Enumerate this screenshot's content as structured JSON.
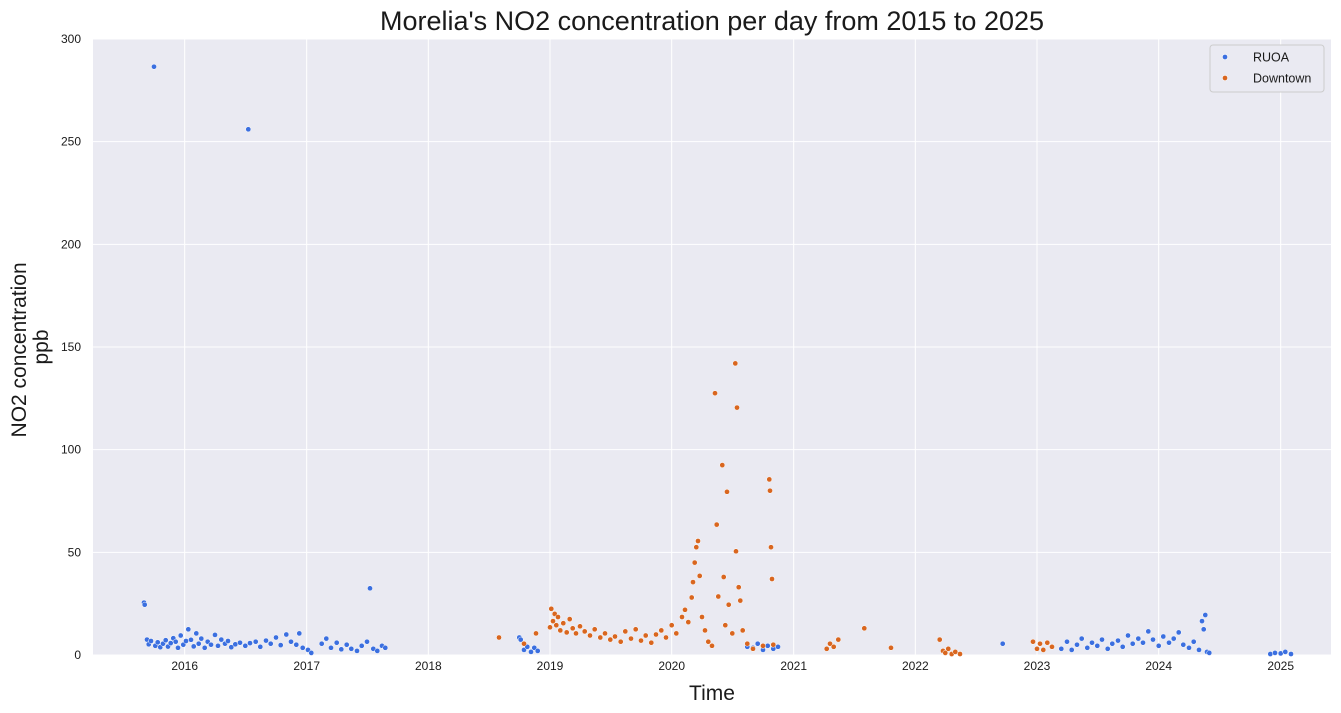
{
  "chart_data": {
    "type": "scatter",
    "title": "Morelia's NO2 concentration per day from 2015 to 2025",
    "xlabel": "Time",
    "ylabel_lines": [
      "NO2 concentration",
      "ppb"
    ],
    "xlim": [
      "2015-04-01",
      "2025-06-01"
    ],
    "ylim": [
      0,
      300
    ],
    "x_ticks": [
      {
        "date": "2016-01-01",
        "label": "2016"
      },
      {
        "date": "2017-01-01",
        "label": "2017"
      },
      {
        "date": "2018-01-01",
        "label": "2018"
      },
      {
        "date": "2019-01-01",
        "label": "2019"
      },
      {
        "date": "2020-01-01",
        "label": "2020"
      },
      {
        "date": "2021-01-01",
        "label": "2021"
      },
      {
        "date": "2022-01-01",
        "label": "2022"
      },
      {
        "date": "2023-01-01",
        "label": "2023"
      },
      {
        "date": "2024-01-01",
        "label": "2024"
      },
      {
        "date": "2025-01-01",
        "label": "2025"
      }
    ],
    "y_ticks": [
      0,
      50,
      100,
      150,
      200,
      250,
      300
    ],
    "grid": true,
    "background": "#EAEAF2",
    "legend_position": "top-right",
    "series": [
      {
        "name": "RUOA",
        "color": "#3B6FE0",
        "points": [
          [
            "2015-09-01",
            25.5
          ],
          [
            "2015-09-03",
            24.5
          ],
          [
            "2015-09-10",
            7.5
          ],
          [
            "2015-09-15",
            5.2
          ],
          [
            "2015-09-22",
            6.8
          ],
          [
            "2015-10-01",
            286.5
          ],
          [
            "2015-10-05",
            4.5
          ],
          [
            "2015-10-12",
            6.2
          ],
          [
            "2015-10-20",
            3.8
          ],
          [
            "2015-10-28",
            5.5
          ],
          [
            "2015-11-05",
            7.2
          ],
          [
            "2015-11-12",
            4.1
          ],
          [
            "2015-11-20",
            5.8
          ],
          [
            "2015-11-28",
            8.2
          ],
          [
            "2015-12-05",
            6.5
          ],
          [
            "2015-12-12",
            3.5
          ],
          [
            "2015-12-20",
            9.5
          ],
          [
            "2015-12-28",
            5.0
          ],
          [
            "2016-01-05",
            6.8
          ],
          [
            "2016-01-12",
            12.5
          ],
          [
            "2016-01-20",
            7.4
          ],
          [
            "2016-01-28",
            4.2
          ],
          [
            "2016-02-05",
            10.5
          ],
          [
            "2016-02-12",
            5.5
          ],
          [
            "2016-02-20",
            8.0
          ],
          [
            "2016-03-01",
            3.5
          ],
          [
            "2016-03-10",
            6.5
          ],
          [
            "2016-03-20",
            5.0
          ],
          [
            "2016-04-01",
            9.8
          ],
          [
            "2016-04-10",
            4.5
          ],
          [
            "2016-04-20",
            7.5
          ],
          [
            "2016-05-01",
            5.5
          ],
          [
            "2016-05-10",
            6.8
          ],
          [
            "2016-05-20",
            3.8
          ],
          [
            "2016-06-01",
            5.2
          ],
          [
            "2016-06-15",
            6.0
          ],
          [
            "2016-07-01",
            4.5
          ],
          [
            "2016-07-10",
            256.0
          ],
          [
            "2016-07-15",
            5.8
          ],
          [
            "2016-08-01",
            6.5
          ],
          [
            "2016-08-15",
            4.0
          ],
          [
            "2016-09-01",
            7.0
          ],
          [
            "2016-09-15",
            5.5
          ],
          [
            "2016-10-01",
            8.5
          ],
          [
            "2016-10-15",
            4.8
          ],
          [
            "2016-11-01",
            10.0
          ],
          [
            "2016-11-15",
            6.5
          ],
          [
            "2016-12-01",
            5.0
          ],
          [
            "2016-12-10",
            10.5
          ],
          [
            "2016-12-20",
            3.5
          ],
          [
            "2017-01-05",
            2.5
          ],
          [
            "2017-01-15",
            1.0
          ],
          [
            "2017-02-15",
            5.5
          ],
          [
            "2017-03-01",
            8.0
          ],
          [
            "2017-03-15",
            3.5
          ],
          [
            "2017-04-01",
            6.0
          ],
          [
            "2017-04-15",
            2.8
          ],
          [
            "2017-05-01",
            5.0
          ],
          [
            "2017-05-15",
            3.0
          ],
          [
            "2017-06-01",
            2.0
          ],
          [
            "2017-06-15",
            4.5
          ],
          [
            "2017-07-01",
            6.5
          ],
          [
            "2017-07-10",
            32.5
          ],
          [
            "2017-07-20",
            3.0
          ],
          [
            "2017-08-01",
            2.0
          ],
          [
            "2017-08-15",
            4.5
          ],
          [
            "2017-08-25",
            3.5
          ],
          [
            "2018-10-01",
            8.5
          ],
          [
            "2018-10-05",
            7.5
          ],
          [
            "2018-10-15",
            2.5
          ],
          [
            "2018-10-25",
            4.0
          ],
          [
            "2018-11-05",
            1.5
          ],
          [
            "2018-11-15",
            3.5
          ],
          [
            "2018-11-25",
            2.0
          ],
          [
            "2020-08-15",
            4.0
          ],
          [
            "2020-09-01",
            3.5
          ],
          [
            "2020-09-15",
            5.5
          ],
          [
            "2020-10-01",
            2.5
          ],
          [
            "2020-10-15",
            4.5
          ],
          [
            "2020-11-01",
            3.0
          ],
          [
            "2020-11-15",
            4.0
          ],
          [
            "2022-09-20",
            5.5
          ],
          [
            "2023-03-15",
            3.0
          ],
          [
            "2023-04-01",
            6.5
          ],
          [
            "2023-04-15",
            2.5
          ],
          [
            "2023-05-01",
            5.0
          ],
          [
            "2023-05-15",
            8.0
          ],
          [
            "2023-06-01",
            3.5
          ],
          [
            "2023-06-15",
            6.0
          ],
          [
            "2023-07-01",
            4.5
          ],
          [
            "2023-07-15",
            7.5
          ],
          [
            "2023-08-01",
            3.0
          ],
          [
            "2023-08-15",
            5.5
          ],
          [
            "2023-09-01",
            7.0
          ],
          [
            "2023-09-15",
            4.0
          ],
          [
            "2023-10-01",
            9.5
          ],
          [
            "2023-10-15",
            5.5
          ],
          [
            "2023-11-01",
            8.0
          ],
          [
            "2023-11-15",
            6.0
          ],
          [
            "2023-12-01",
            11.5
          ],
          [
            "2023-12-15",
            7.5
          ],
          [
            "2024-01-01",
            4.5
          ],
          [
            "2024-01-15",
            9.0
          ],
          [
            "2024-02-01",
            6.0
          ],
          [
            "2024-02-15",
            8.0
          ],
          [
            "2024-03-01",
            11.0
          ],
          [
            "2024-03-15",
            5.0
          ],
          [
            "2024-04-01",
            3.5
          ],
          [
            "2024-04-15",
            6.5
          ],
          [
            "2024-05-01",
            2.5
          ],
          [
            "2024-05-10",
            16.5
          ],
          [
            "2024-05-15",
            12.5
          ],
          [
            "2024-05-20",
            19.5
          ],
          [
            "2024-05-25",
            1.5
          ],
          [
            "2024-06-01",
            1.0
          ],
          [
            "2024-12-01",
            0.5
          ],
          [
            "2024-12-15",
            1.0
          ],
          [
            "2025-01-01",
            0.8
          ],
          [
            "2025-01-15",
            1.5
          ],
          [
            "2025-02-01",
            0.5
          ]
        ]
      },
      {
        "name": "Downtown",
        "color": "#D9661F",
        "points": [
          [
            "2018-08-01",
            8.5
          ],
          [
            "2018-10-15",
            5.5
          ],
          [
            "2018-11-20",
            10.5
          ],
          [
            "2019-01-01",
            13.5
          ],
          [
            "2019-01-05",
            22.5
          ],
          [
            "2019-01-10",
            16.5
          ],
          [
            "2019-01-15",
            20.0
          ],
          [
            "2019-01-20",
            14.5
          ],
          [
            "2019-01-25",
            18.5
          ],
          [
            "2019-02-01",
            12.0
          ],
          [
            "2019-02-10",
            15.5
          ],
          [
            "2019-02-20",
            11.0
          ],
          [
            "2019-03-01",
            17.5
          ],
          [
            "2019-03-10",
            13.0
          ],
          [
            "2019-03-20",
            10.5
          ],
          [
            "2019-04-01",
            14.0
          ],
          [
            "2019-04-15",
            11.5
          ],
          [
            "2019-05-01",
            9.5
          ],
          [
            "2019-05-15",
            12.5
          ],
          [
            "2019-06-01",
            8.5
          ],
          [
            "2019-06-15",
            10.5
          ],
          [
            "2019-07-01",
            7.5
          ],
          [
            "2019-07-15",
            9.0
          ],
          [
            "2019-08-01",
            6.5
          ],
          [
            "2019-08-15",
            11.5
          ],
          [
            "2019-09-01",
            8.0
          ],
          [
            "2019-09-15",
            12.5
          ],
          [
            "2019-10-01",
            7.0
          ],
          [
            "2019-10-15",
            9.5
          ],
          [
            "2019-11-01",
            6.0
          ],
          [
            "2019-11-15",
            10.0
          ],
          [
            "2019-12-01",
            12.0
          ],
          [
            "2019-12-15",
            8.5
          ],
          [
            "2020-01-01",
            14.5
          ],
          [
            "2020-01-15",
            10.5
          ],
          [
            "2020-02-01",
            18.5
          ],
          [
            "2020-02-10",
            22.0
          ],
          [
            "2020-02-20",
            16.0
          ],
          [
            "2020-03-01",
            28.0
          ],
          [
            "2020-03-05",
            35.5
          ],
          [
            "2020-03-10",
            45.0
          ],
          [
            "2020-03-15",
            52.5
          ],
          [
            "2020-03-20",
            55.5
          ],
          [
            "2020-03-25",
            38.5
          ],
          [
            "2020-04-01",
            18.5
          ],
          [
            "2020-04-10",
            12.0
          ],
          [
            "2020-04-20",
            6.5
          ],
          [
            "2020-05-01",
            4.5
          ],
          [
            "2020-05-10",
            127.5
          ],
          [
            "2020-05-15",
            63.5
          ],
          [
            "2020-05-20",
            28.5
          ],
          [
            "2020-06-01",
            92.5
          ],
          [
            "2020-06-05",
            38.0
          ],
          [
            "2020-06-10",
            14.5
          ],
          [
            "2020-06-15",
            79.5
          ],
          [
            "2020-06-20",
            24.5
          ],
          [
            "2020-07-01",
            10.5
          ],
          [
            "2020-07-10",
            142.0
          ],
          [
            "2020-07-12",
            50.5
          ],
          [
            "2020-07-15",
            120.5
          ],
          [
            "2020-07-20",
            33.0
          ],
          [
            "2020-07-25",
            26.5
          ],
          [
            "2020-08-01",
            12.0
          ],
          [
            "2020-08-15",
            5.5
          ],
          [
            "2020-09-01",
            3.0
          ],
          [
            "2020-10-01",
            4.5
          ],
          [
            "2020-10-20",
            85.5
          ],
          [
            "2020-10-22",
            80.0
          ],
          [
            "2020-10-25",
            52.5
          ],
          [
            "2020-10-28",
            37.0
          ],
          [
            "2020-11-01",
            5.0
          ],
          [
            "2021-04-10",
            3.0
          ],
          [
            "2021-04-20",
            5.5
          ],
          [
            "2021-05-01",
            4.0
          ],
          [
            "2021-05-15",
            7.5
          ],
          [
            "2021-08-01",
            13.0
          ],
          [
            "2021-10-20",
            3.5
          ],
          [
            "2022-03-15",
            7.5
          ],
          [
            "2022-03-25",
            2.0
          ],
          [
            "2022-04-01",
            1.0
          ],
          [
            "2022-04-10",
            3.0
          ],
          [
            "2022-04-20",
            0.5
          ],
          [
            "2022-05-01",
            1.5
          ],
          [
            "2022-05-15",
            0.5
          ],
          [
            "2022-12-20",
            6.5
          ],
          [
            "2023-01-01",
            3.0
          ],
          [
            "2023-01-10",
            5.5
          ],
          [
            "2023-01-20",
            2.5
          ],
          [
            "2023-02-01",
            6.0
          ],
          [
            "2023-02-15",
            4.0
          ]
        ]
      }
    ]
  }
}
